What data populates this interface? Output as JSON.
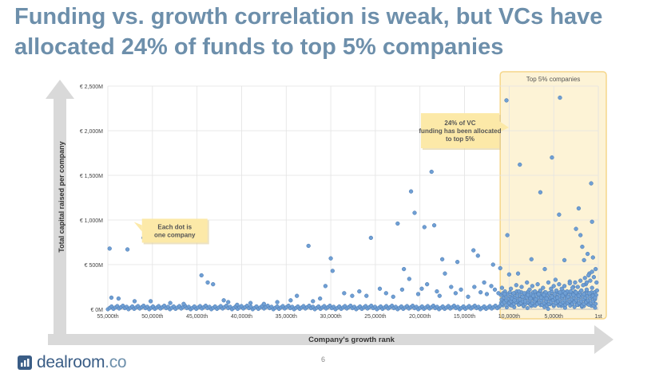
{
  "title": "Funding vs. growth correlation is weak, but VCs have allocated 24% of funds to top 5% companies",
  "page_number": "6",
  "logo": {
    "name": "dealroom",
    "tld": ".co"
  },
  "colors": {
    "title": "#6d8fab",
    "dot": "#6f9fd4",
    "dot_stroke": "#4a78b0",
    "highlight_fill": "#fdf3d6",
    "highlight_border": "#f5d68a",
    "callout_fill": "#fce9a8",
    "arrow": "#d9d9d9"
  },
  "chart_data": {
    "type": "scatter",
    "title": "",
    "xlabel": "Company's growth rank",
    "ylabel": "Total capital raised per company",
    "x_reversed": true,
    "xlim": [
      55000,
      0
    ],
    "ylim": [
      0,
      2500
    ],
    "x_ticks": [
      55000,
      50000,
      45000,
      40000,
      35000,
      30000,
      25000,
      20000,
      15000,
      10000,
      5000,
      0
    ],
    "x_tick_labels": [
      "55,000th",
      "50,000th",
      "45,000th",
      "40,000th",
      "35,000th",
      "30,000th",
      "25,000th",
      "20,000th",
      "15,000th",
      "10,000th",
      "5,000th",
      "1st"
    ],
    "y_ticks": [
      0,
      500,
      1000,
      1500,
      2000,
      2500
    ],
    "y_tick_labels": [
      "€ 0M",
      "€ 500M",
      "€ 1,000M",
      "€ 1,500M",
      "€ 2,000M",
      "€ 2,500M"
    ],
    "grid": true,
    "highlight_region": {
      "label": "Top 5% companies",
      "x_from": 11000,
      "x_to": 0
    },
    "annotations": [
      {
        "text": "Each dot is one company",
        "x": 47500,
        "y": 880
      },
      {
        "text": "24% of VC funding has been allocated to top 5%",
        "x": 15500,
        "y": 2000
      }
    ],
    "points": [
      [
        54800,
        680
      ],
      [
        52800,
        670
      ],
      [
        51000,
        800
      ],
      [
        44500,
        380
      ],
      [
        43800,
        300
      ],
      [
        43200,
        280
      ],
      [
        32500,
        710
      ],
      [
        30000,
        570
      ],
      [
        29800,
        430
      ],
      [
        30600,
        260
      ],
      [
        25500,
        800
      ],
      [
        22500,
        960
      ],
      [
        21800,
        450
      ],
      [
        21200,
        340
      ],
      [
        21000,
        1320
      ],
      [
        20600,
        1080
      ],
      [
        19500,
        920
      ],
      [
        19200,
        280
      ],
      [
        18700,
        1540
      ],
      [
        18400,
        940
      ],
      [
        17500,
        560
      ],
      [
        17200,
        400
      ],
      [
        15800,
        530
      ],
      [
        14000,
        660
      ],
      [
        13500,
        600
      ],
      [
        12800,
        300
      ],
      [
        11800,
        500
      ],
      [
        11000,
        460
      ],
      [
        10200,
        830
      ],
      [
        10000,
        390
      ],
      [
        10300,
        2340
      ],
      [
        8800,
        1620
      ],
      [
        6500,
        1310
      ],
      [
        5200,
        1700
      ],
      [
        4400,
        1060
      ],
      [
        4300,
        2370
      ],
      [
        2200,
        1130
      ],
      [
        2500,
        900
      ],
      [
        2000,
        830
      ],
      [
        1800,
        700
      ],
      [
        1600,
        550
      ],
      [
        1200,
        620
      ],
      [
        1000,
        400
      ],
      [
        800,
        1410
      ],
      [
        700,
        980
      ],
      [
        3800,
        550
      ],
      [
        6000,
        450
      ],
      [
        7500,
        560
      ],
      [
        9000,
        400
      ],
      [
        4800,
        330
      ],
      [
        3200,
        310
      ],
      [
        2800,
        250
      ],
      [
        1400,
        280
      ],
      [
        600,
        580
      ],
      [
        54600,
        130
      ],
      [
        53800,
        120
      ],
      [
        52000,
        90
      ],
      [
        50200,
        90
      ],
      [
        48000,
        70
      ],
      [
        46500,
        60
      ],
      [
        42000,
        100
      ],
      [
        41500,
        80
      ],
      [
        40500,
        50
      ],
      [
        39000,
        70
      ],
      [
        37500,
        60
      ],
      [
        36000,
        80
      ],
      [
        34500,
        100
      ],
      [
        33800,
        150
      ],
      [
        32000,
        90
      ],
      [
        31200,
        120
      ],
      [
        28500,
        180
      ],
      [
        27600,
        150
      ],
      [
        26800,
        200
      ],
      [
        26000,
        150
      ],
      [
        24500,
        230
      ],
      [
        23800,
        180
      ],
      [
        23000,
        140
      ],
      [
        22000,
        220
      ],
      [
        20200,
        170
      ],
      [
        19800,
        230
      ],
      [
        18100,
        200
      ],
      [
        17800,
        150
      ],
      [
        16500,
        250
      ],
      [
        16000,
        180
      ],
      [
        15400,
        220
      ],
      [
        14600,
        140
      ],
      [
        13900,
        250
      ],
      [
        13200,
        190
      ],
      [
        12500,
        170
      ],
      [
        12000,
        260
      ],
      [
        11600,
        220
      ],
      [
        11200,
        180
      ],
      [
        10800,
        240
      ],
      [
        10500,
        170
      ],
      [
        9800,
        230
      ],
      [
        9500,
        180
      ],
      [
        9200,
        270
      ],
      [
        8900,
        200
      ],
      [
        8600,
        250
      ],
      [
        8300,
        180
      ],
      [
        8000,
        300
      ],
      [
        7700,
        220
      ],
      [
        7400,
        260
      ],
      [
        7100,
        200
      ],
      [
        6800,
        280
      ],
      [
        6500,
        210
      ],
      [
        6200,
        240
      ],
      [
        5900,
        190
      ],
      [
        5600,
        300
      ],
      [
        5300,
        230
      ],
      [
        5000,
        260
      ],
      [
        4700,
        210
      ],
      [
        4400,
        280
      ],
      [
        4100,
        230
      ],
      [
        3800,
        260
      ],
      [
        3500,
        200
      ],
      [
        3200,
        290
      ],
      [
        2900,
        240
      ],
      [
        2600,
        300
      ],
      [
        2300,
        250
      ],
      [
        2000,
        320
      ],
      [
        1700,
        270
      ],
      [
        1500,
        350
      ],
      [
        1300,
        300
      ],
      [
        1100,
        380
      ],
      [
        900,
        320
      ],
      [
        700,
        420
      ],
      [
        500,
        360
      ],
      [
        300,
        450
      ],
      [
        200,
        300
      ],
      [
        9700,
        120
      ],
      [
        9400,
        100
      ],
      [
        9100,
        150
      ],
      [
        8800,
        110
      ],
      [
        8500,
        140
      ],
      [
        8200,
        90
      ],
      [
        7900,
        160
      ],
      [
        7600,
        120
      ],
      [
        7300,
        150
      ],
      [
        7000,
        110
      ],
      [
        6700,
        170
      ],
      [
        6400,
        130
      ],
      [
        6100,
        160
      ],
      [
        5800,
        120
      ],
      [
        5500,
        180
      ],
      [
        5200,
        140
      ],
      [
        4900,
        170
      ],
      [
        4600,
        130
      ],
      [
        4300,
        190
      ],
      [
        4000,
        150
      ],
      [
        3700,
        180
      ],
      [
        3400,
        140
      ],
      [
        3100,
        200
      ],
      [
        2800,
        160
      ],
      [
        2500,
        190
      ],
      [
        2200,
        150
      ],
      [
        1900,
        210
      ],
      [
        1600,
        170
      ],
      [
        1300,
        220
      ],
      [
        1000,
        180
      ],
      [
        700,
        240
      ],
      [
        400,
        190
      ],
      [
        250,
        160
      ],
      [
        150,
        210
      ],
      [
        600,
        150
      ],
      [
        350,
        130
      ]
    ]
  }
}
